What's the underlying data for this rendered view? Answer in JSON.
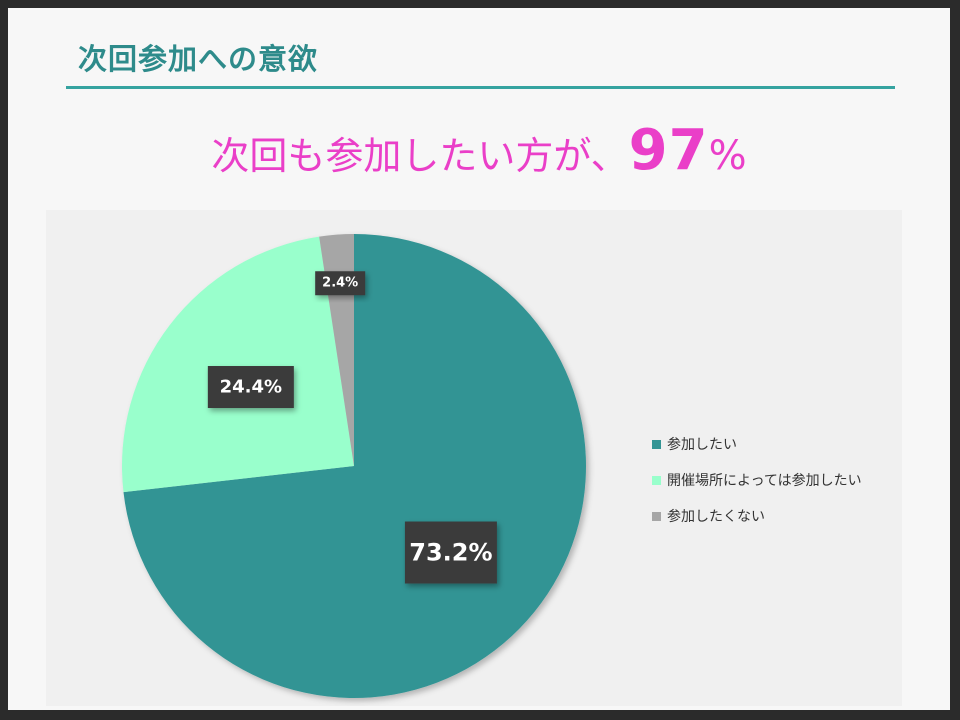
{
  "title": "次回参加への意欲",
  "headline": {
    "prefix": "次回も参加したい方が、",
    "value": "97",
    "unit": "%"
  },
  "chart_data": {
    "type": "pie",
    "slices": [
      {
        "label": "参加したい",
        "value": 73.2,
        "display": "73.2%",
        "color": "#339494"
      },
      {
        "label": "開催場所によっては参加したい",
        "value": 24.4,
        "display": "24.4%",
        "color": "#99ffcc"
      },
      {
        "label": "参加したくない",
        "value": 2.4,
        "display": "2.4%",
        "color": "#a6a6a6"
      }
    ],
    "legend_position": "right"
  }
}
